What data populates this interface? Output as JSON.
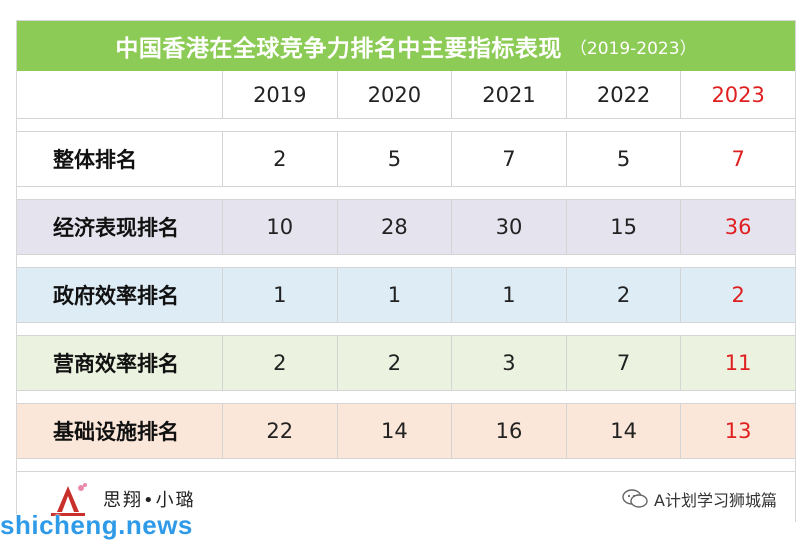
{
  "title": {
    "main": "中国香港在全球竞争力排名中主要指标表现",
    "sub": "（2019-2023）"
  },
  "header": {
    "years": [
      "2019",
      "2020",
      "2021",
      "2022",
      "2023"
    ]
  },
  "rows": [
    {
      "label": "整体排名",
      "values": [
        "2",
        "5",
        "7",
        "5",
        "7"
      ]
    },
    {
      "label": "经济表现排名",
      "values": [
        "10",
        "28",
        "30",
        "15",
        "36"
      ]
    },
    {
      "label": "政府效率排名",
      "values": [
        "1",
        "1",
        "1",
        "2",
        "2"
      ]
    },
    {
      "label": "营商效率排名",
      "values": [
        "2",
        "2",
        "3",
        "7",
        "11"
      ]
    },
    {
      "label": "基础设施排名",
      "values": [
        "22",
        "14",
        "16",
        "14",
        "13"
      ]
    }
  ],
  "footer": {
    "brand": "思翔•小璐",
    "wechat_account": "A计划学习狮城篇"
  },
  "watermark": "shicheng.news",
  "colors": {
    "title_bg": "#8ccb55",
    "highlight": "#e02020",
    "row_bgs": [
      "#ffffff",
      "#e5e3ee",
      "#ddecf5",
      "#ebf2df",
      "#fbe7d9"
    ]
  }
}
